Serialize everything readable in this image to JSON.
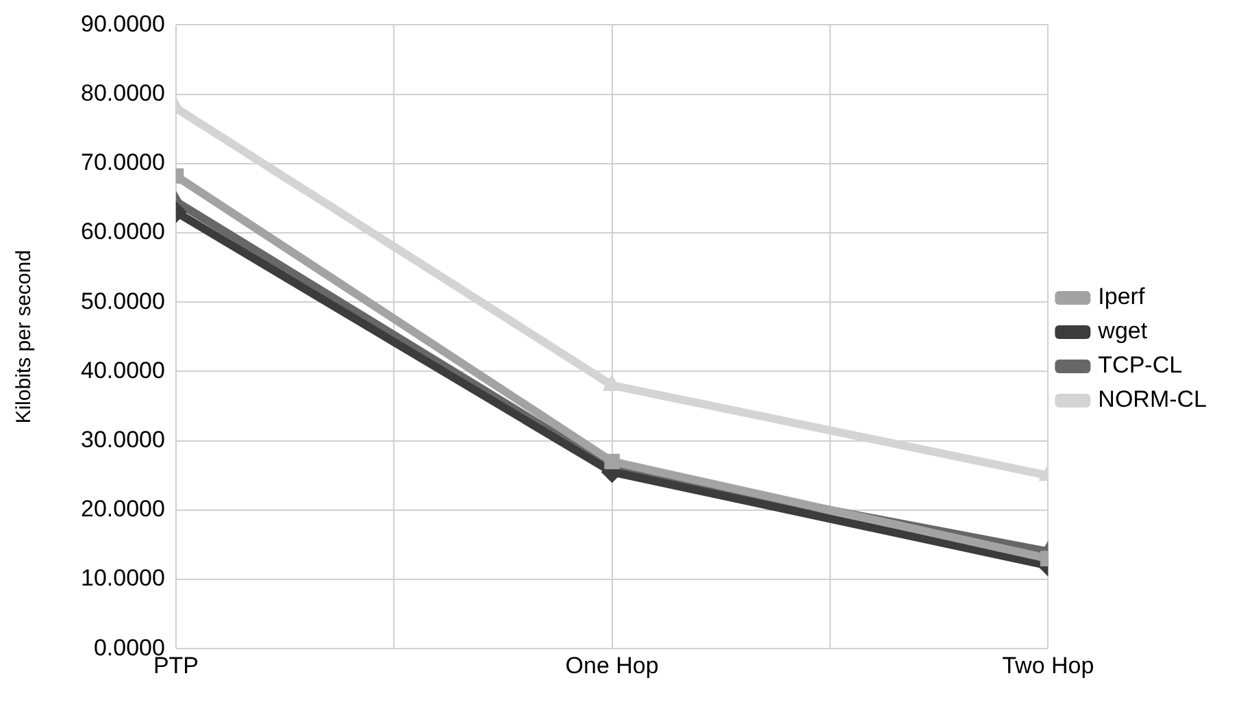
{
  "chart_data": {
    "type": "line",
    "ylabel": "Kilobits per second",
    "categories": [
      "PTP",
      "One Hop",
      "Two Hop"
    ],
    "series": [
      {
        "name": "Iperf",
        "color": "#a3a3a3",
        "values": [
          68.2,
          27,
          13
        ],
        "marker": "square"
      },
      {
        "name": "wget",
        "color": "#3c3c3c",
        "values": [
          63,
          25.5,
          12
        ],
        "marker": "diamond"
      },
      {
        "name": "TCP-CL",
        "color": "#676767",
        "values": [
          64.5,
          26,
          14
        ],
        "marker": "triangle"
      },
      {
        "name": "NORM-CL",
        "color": "#d4d4d4",
        "values": [
          78,
          38,
          25
        ],
        "marker": "triangle"
      }
    ],
    "ylim": [
      0,
      90
    ],
    "yticks": [
      {
        "value": 0,
        "label": "0.0000"
      },
      {
        "value": 10,
        "label": "10.0000"
      },
      {
        "value": 20,
        "label": "20.0000"
      },
      {
        "value": 30,
        "label": "30.0000"
      },
      {
        "value": 40,
        "label": "40.0000"
      },
      {
        "value": 50,
        "label": "50.0000"
      },
      {
        "value": 60,
        "label": "60.0000"
      },
      {
        "value": 70,
        "label": "70.0000"
      },
      {
        "value": 80,
        "label": "80.0000"
      },
      {
        "value": 90,
        "label": "90.0000"
      }
    ],
    "grid": true,
    "legend": "right",
    "line_style": "solid"
  }
}
